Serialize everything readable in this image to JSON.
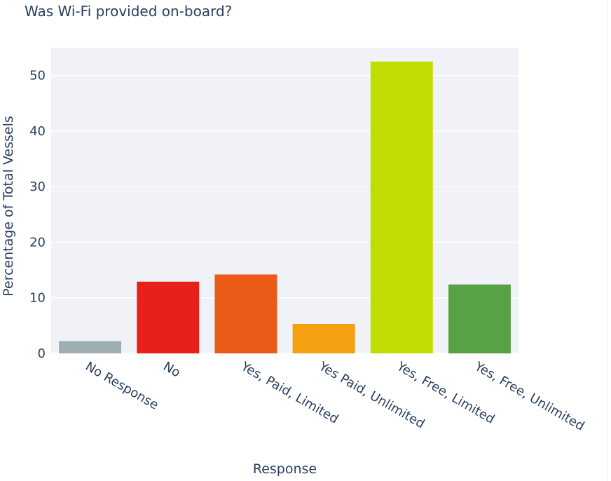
{
  "chart_data": {
    "type": "bar",
    "title": "Was Wi-Fi provided on-board?",
    "xlabel": "Response",
    "ylabel": "Percentage of Total Vessels",
    "categories": [
      "No Response",
      "No",
      "Yes, Paid, Limited",
      "Yes Paid, Unlimited",
      "Yes, Free, Limited",
      "Yes, Free, Unlimited"
    ],
    "values": [
      2.2,
      12.9,
      14.2,
      5.3,
      52.5,
      12.4
    ],
    "colors": [
      "#9eaeb0",
      "#e8201c",
      "#ea5b18",
      "#f5a010",
      "#c0dc00",
      "#56a244"
    ],
    "ylim": [
      0,
      55
    ],
    "yticks": [
      0,
      10,
      20,
      30,
      40,
      50
    ],
    "grid": true,
    "plot_background": "#f0f2f7",
    "text_color": "#2a3f5f"
  }
}
